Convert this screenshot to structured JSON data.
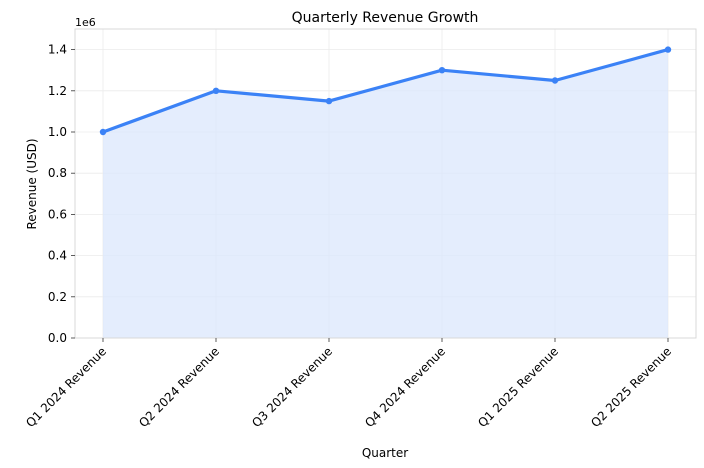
{
  "chart_data": {
    "type": "area",
    "title": "Quarterly Revenue Growth",
    "xlabel": "Quarter",
    "ylabel": "Revenue (USD)",
    "y_offset_label": "1e6",
    "categories": [
      "Q1 2024 Revenue",
      "Q2 2024 Revenue",
      "Q3 2024 Revenue",
      "Q4 2024 Revenue",
      "Q1 2025 Revenue",
      "Q2 2025 Revenue"
    ],
    "series": [
      {
        "values": [
          1000000,
          1200000,
          1150000,
          1300000,
          1250000,
          1400000
        ]
      }
    ],
    "ylim": [
      0,
      1500000
    ],
    "yticks": [
      0,
      200000,
      400000,
      600000,
      800000,
      1000000,
      1200000,
      1400000
    ],
    "ytick_labels": [
      "0.0",
      "0.2",
      "0.4",
      "0.6",
      "0.8",
      "1.0",
      "1.2",
      "1.4"
    ],
    "grid": true,
    "colors": {
      "line": "#3b82f6",
      "fill": "#dbe7fc",
      "grid": "#ebebeb",
      "spine": "#d9d9d9"
    }
  }
}
